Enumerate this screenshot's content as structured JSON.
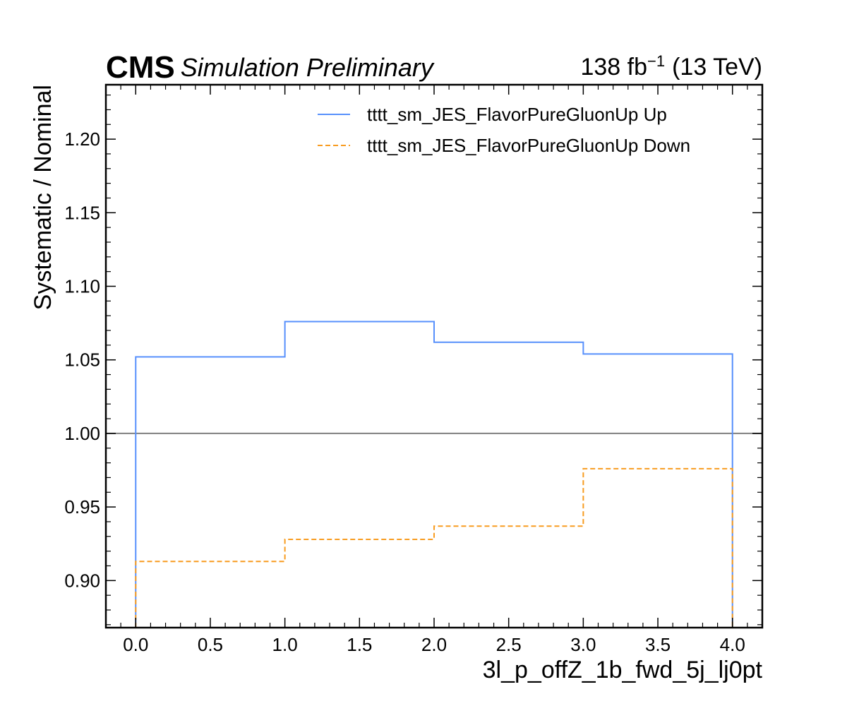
{
  "header": {
    "experiment": "CMS",
    "status": "Simulation Preliminary",
    "lumi_value": "138 fb",
    "lumi_exp": "−1",
    "energy": "(13 TeV)"
  },
  "chart_data": {
    "type": "line",
    "drawstyle": "steps",
    "xlabel": "3l_p_offZ_1b_fwd_5j_lj0pt",
    "ylabel": "Systematic / Nominal",
    "xlim": [
      -0.2,
      4.2
    ],
    "ylim": [
      0.868,
      1.237
    ],
    "x_ticks": [
      0.0,
      0.5,
      1.0,
      1.5,
      2.0,
      2.5,
      3.0,
      3.5,
      4.0
    ],
    "x_tick_labels": [
      "0.0",
      "0.5",
      "1.0",
      "1.5",
      "2.0",
      "2.5",
      "3.0",
      "3.5",
      "4.0"
    ],
    "y_ticks": [
      0.9,
      0.95,
      1.0,
      1.05,
      1.1,
      1.15,
      1.2
    ],
    "y_tick_labels": [
      "0.90",
      "0.95",
      "1.00",
      "1.05",
      "1.10",
      "1.15",
      "1.20"
    ],
    "bin_edges": [
      0,
      1,
      2,
      3,
      4
    ],
    "reference_line": 1.0,
    "legend_position": "top-right",
    "grid": false,
    "series": [
      {
        "name": "tttt_sm_JES_FlavorPureGluonUp Up",
        "values": [
          1.052,
          1.076,
          1.062,
          1.054
        ],
        "color": "#5790fc",
        "linestyle": "solid"
      },
      {
        "name": "tttt_sm_JES_FlavorPureGluonUp Down",
        "values": [
          0.913,
          0.928,
          0.937,
          0.976
        ],
        "color": "#f89c20",
        "linestyle": "dashed"
      }
    ],
    "reference_color": "#808080"
  }
}
